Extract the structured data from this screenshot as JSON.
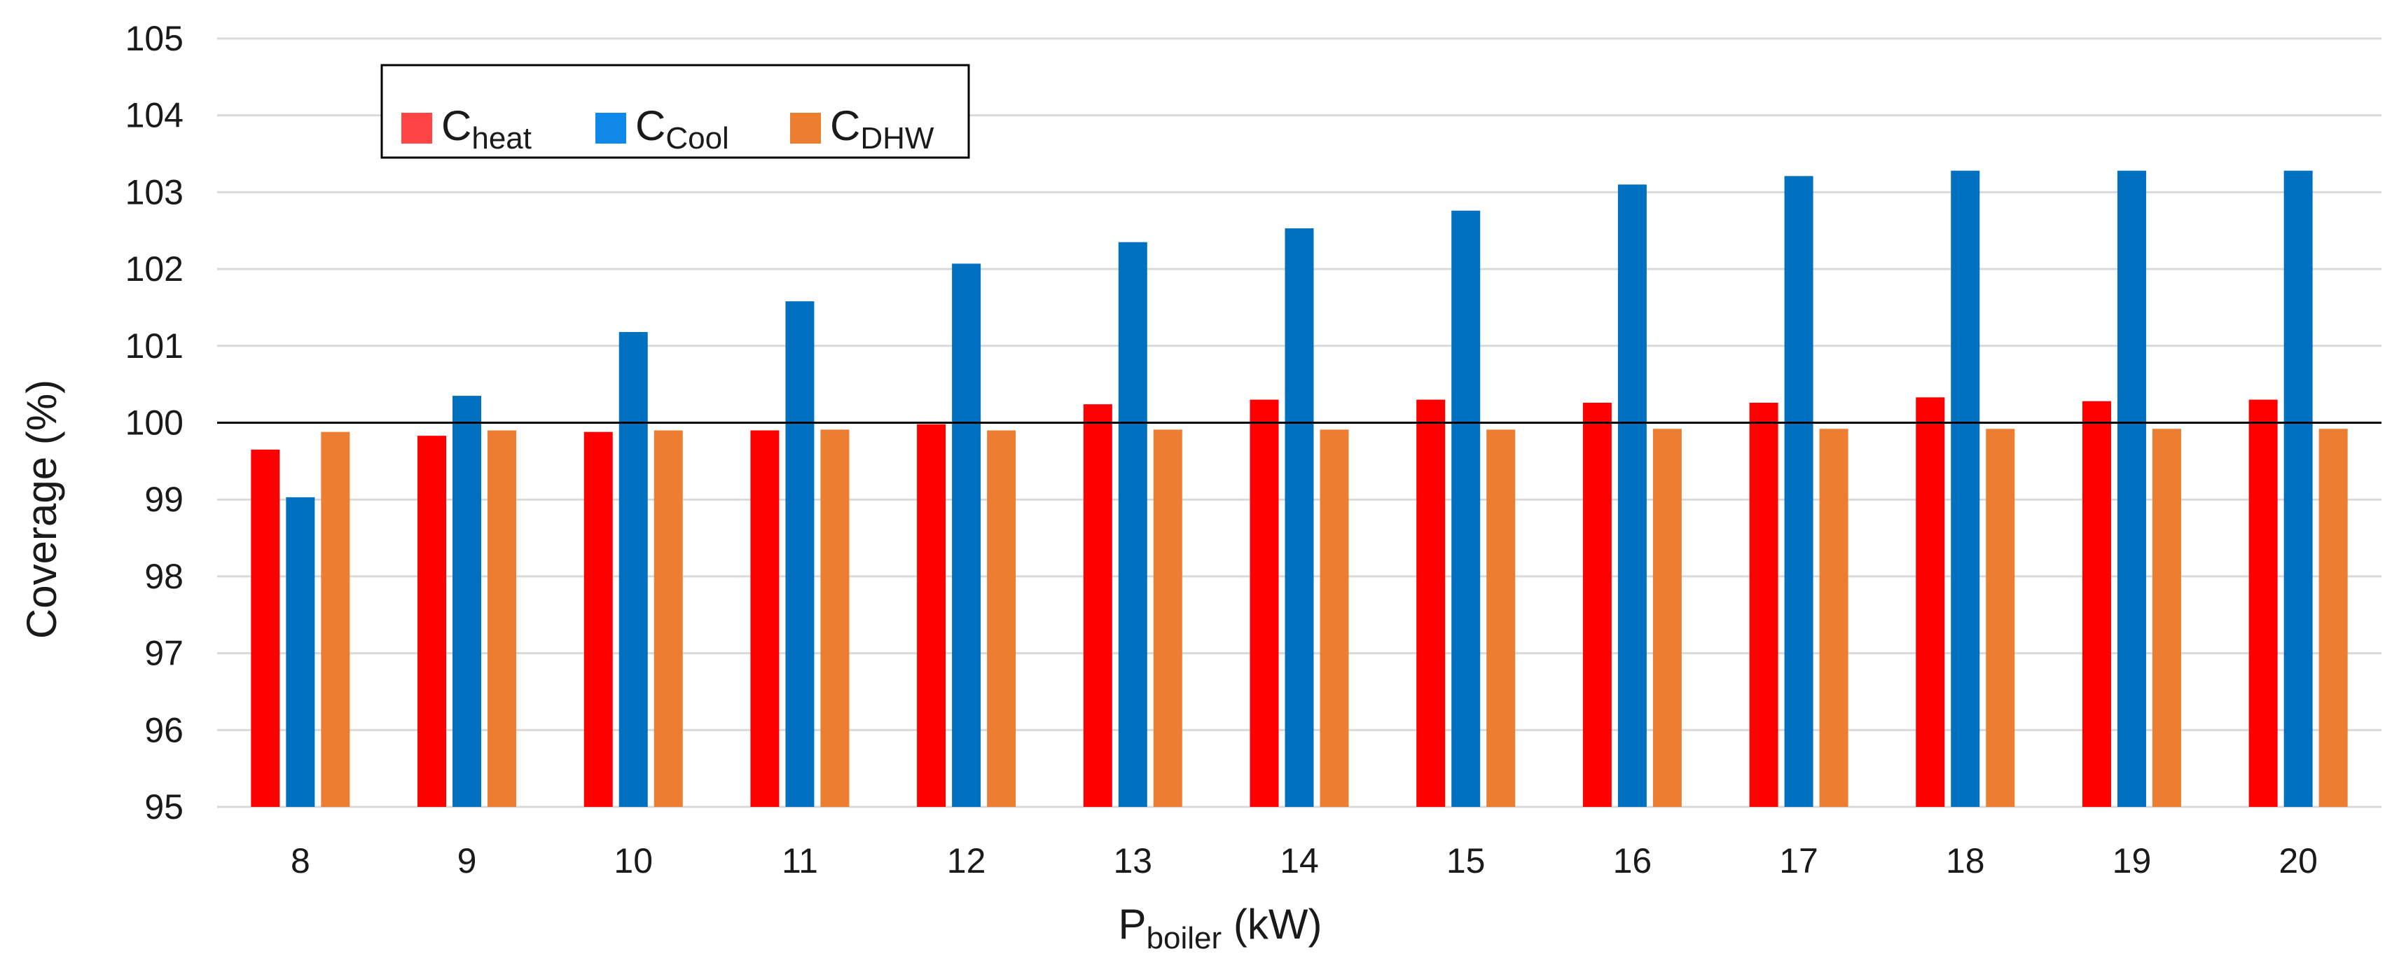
{
  "chart_data": {
    "type": "bar",
    "title": "",
    "xlabel": {
      "main": "P",
      "sub": "boiler",
      "unit": " (kW)"
    },
    "ylabel": "Coverage (%)",
    "ylim": [
      95,
      105
    ],
    "yticks": [
      95,
      96,
      97,
      98,
      99,
      100,
      101,
      102,
      103,
      104,
      105
    ],
    "grid": true,
    "reference_line": 100,
    "legend_position": "top-left",
    "categories": [
      "8",
      "9",
      "10",
      "11",
      "12",
      "13",
      "14",
      "15",
      "16",
      "17",
      "18",
      "19",
      "20"
    ],
    "series": [
      {
        "name": "C",
        "sub": "heat",
        "color": "#ff0000",
        "legend_color": "#ff4444",
        "values": [
          99.65,
          99.83,
          99.88,
          99.9,
          99.98,
          100.24,
          100.3,
          100.3,
          100.26,
          100.26,
          100.33,
          100.28,
          100.3
        ]
      },
      {
        "name": "C",
        "sub": "Cool",
        "color": "#0070c0",
        "legend_color": "#1088e8",
        "values": [
          99.03,
          100.35,
          101.18,
          101.58,
          102.07,
          102.35,
          102.53,
          102.76,
          103.1,
          103.21,
          103.28,
          103.28,
          103.28
        ]
      },
      {
        "name": "C",
        "sub": "DHW",
        "color": "#ed7d31",
        "legend_color": "#ed7d31",
        "values": [
          99.88,
          99.9,
          99.9,
          99.91,
          99.9,
          99.91,
          99.91,
          99.91,
          99.92,
          99.92,
          99.92,
          99.92,
          99.92
        ]
      }
    ]
  }
}
